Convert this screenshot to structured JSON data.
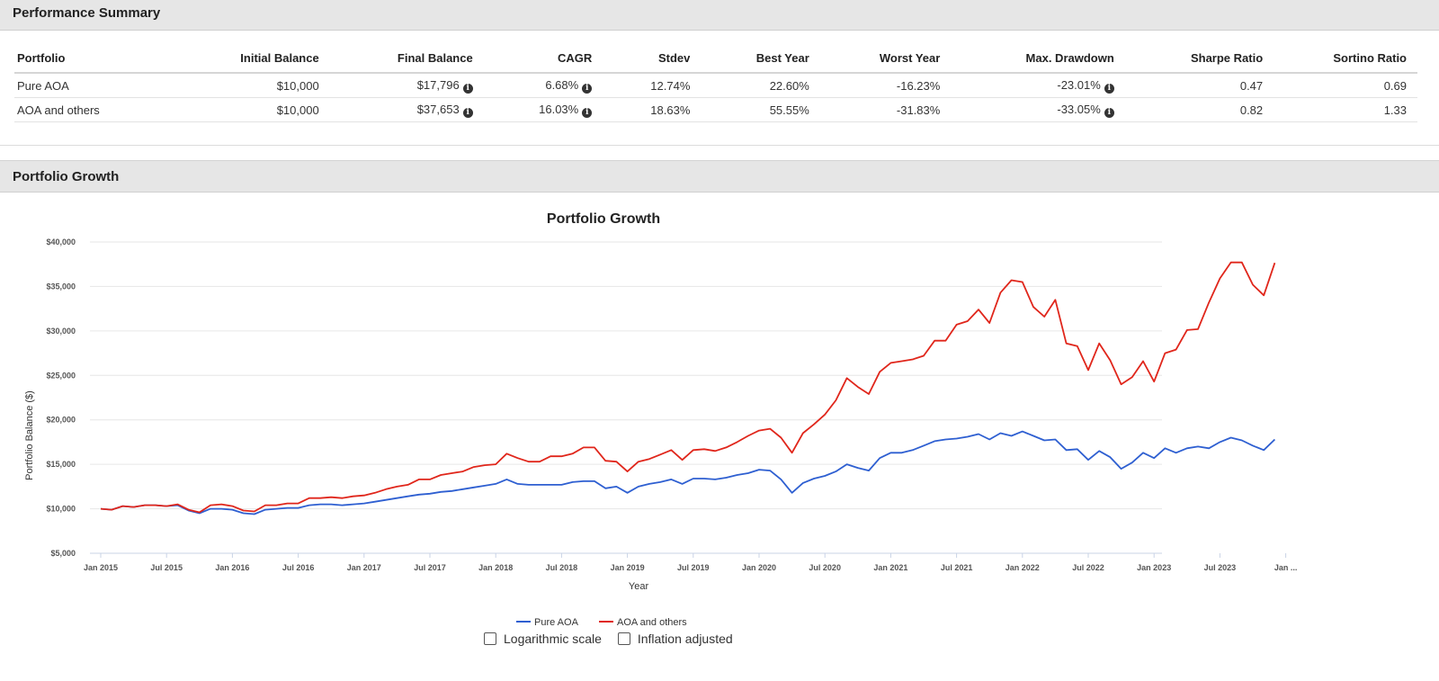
{
  "performance_summary": {
    "title": "Performance Summary",
    "columns": [
      "Portfolio",
      "Initial Balance",
      "Final Balance",
      "CAGR",
      "Stdev",
      "Best Year",
      "Worst Year",
      "Max. Drawdown",
      "Sharpe Ratio",
      "Sortino Ratio"
    ],
    "rows": [
      {
        "portfolio": "Pure AOA",
        "initial_balance": "$10,000",
        "final_balance": "$17,796",
        "cagr": "6.68%",
        "stdev": "12.74%",
        "best_year": "22.60%",
        "worst_year": "-16.23%",
        "max_drawdown": "-23.01%",
        "sharpe_ratio": "0.47",
        "sortino_ratio": "0.69"
      },
      {
        "portfolio": "AOA and others",
        "initial_balance": "$10,000",
        "final_balance": "$37,653",
        "cagr": "16.03%",
        "stdev": "18.63%",
        "best_year": "55.55%",
        "worst_year": "-31.83%",
        "max_drawdown": "-33.05%",
        "sharpe_ratio": "0.82",
        "sortino_ratio": "1.33"
      }
    ],
    "info_icon_glyph": "i"
  },
  "portfolio_growth": {
    "section_title": "Portfolio Growth",
    "controls": {
      "log_scale": {
        "label": "Logarithmic scale",
        "checked": false
      },
      "inflation_adjusted": {
        "label": "Inflation adjusted",
        "checked": false
      }
    }
  },
  "chart_data": {
    "type": "line",
    "title": "Portfolio Growth",
    "xlabel": "Year",
    "ylabel": "Portfolio Balance ($)",
    "ylim": [
      5000,
      40000
    ],
    "yticks": [
      "$5,000",
      "$10,000",
      "$15,000",
      "$20,000",
      "$25,000",
      "$30,000",
      "$35,000",
      "$40,000"
    ],
    "ytick_values": [
      5000,
      10000,
      15000,
      20000,
      25000,
      30000,
      35000,
      40000
    ],
    "xticks": [
      "Jan 2015",
      "Jul 2015",
      "Jan 2016",
      "Jul 2016",
      "Jan 2017",
      "Jul 2017",
      "Jan 2018",
      "Jul 2018",
      "Jan 2019",
      "Jul 2019",
      "Jan 2020",
      "Jul 2020",
      "Jan 2021",
      "Jul 2021",
      "Jan 2022",
      "Jul 2022",
      "Jan 2023",
      "Jul 2023",
      "Jan ..."
    ],
    "grid": true,
    "legend_position": "bottom-center",
    "x_start": "Jan 2015",
    "x_frequency": "monthly",
    "series": [
      {
        "name": "Pure AOA",
        "color": "#2e5fd1",
        "values": [
          10000,
          9900,
          10300,
          10200,
          10400,
          10400,
          10300,
          10400,
          9800,
          9500,
          10000,
          10000,
          9900,
          9500,
          9400,
          9900,
          10000,
          10100,
          10100,
          10400,
          10500,
          10500,
          10400,
          10500,
          10600,
          10800,
          11000,
          11200,
          11400,
          11600,
          11700,
          11900,
          12000,
          12200,
          12400,
          12600,
          12800,
          13300,
          12800,
          12700,
          12700,
          12700,
          12700,
          13000,
          13100,
          13100,
          12300,
          12500,
          11800,
          12500,
          12800,
          13000,
          13300,
          12800,
          13400,
          13400,
          13300,
          13500,
          13800,
          14000,
          14400,
          14300,
          13300,
          11800,
          12900,
          13400,
          13700,
          14200,
          15000,
          14600,
          14300,
          15700,
          16300,
          16300,
          16600,
          17100,
          17600,
          17800,
          17900,
          18100,
          18400,
          17800,
          18500,
          18200,
          18700,
          18200,
          17700,
          17800,
          16600,
          16700,
          15500,
          16500,
          15800,
          14500,
          15200,
          16300,
          15700,
          16800,
          16300,
          16800,
          17000,
          16800,
          17500,
          18000,
          17700,
          17100,
          16600,
          17796
        ]
      },
      {
        "name": "AOA and others",
        "color": "#e0261b",
        "values": [
          10000,
          9900,
          10300,
          10200,
          10400,
          10400,
          10300,
          10500,
          9900,
          9600,
          10400,
          10500,
          10300,
          9800,
          9700,
          10400,
          10400,
          10600,
          10600,
          11200,
          11200,
          11300,
          11200,
          11400,
          11500,
          11800,
          12200,
          12500,
          12700,
          13300,
          13300,
          13800,
          14000,
          14200,
          14700,
          14900,
          15000,
          16200,
          15700,
          15300,
          15300,
          15900,
          15900,
          16200,
          16900,
          16900,
          15400,
          15300,
          14200,
          15300,
          15600,
          16100,
          16600,
          15500,
          16600,
          16700,
          16500,
          16900,
          17500,
          18200,
          18800,
          19000,
          18000,
          16300,
          18500,
          19500,
          20600,
          22200,
          24700,
          23700,
          22900,
          25400,
          26400,
          26600,
          26800,
          27200,
          28900,
          28900,
          30700,
          31100,
          32400,
          30900,
          34300,
          35700,
          35500,
          32700,
          31600,
          33500,
          28600,
          28300,
          25600,
          28600,
          26700,
          24000,
          24800,
          26600,
          24300,
          27500,
          27900,
          30100,
          30200,
          33200,
          35900,
          37700,
          37700,
          35200,
          34000,
          37653
        ]
      }
    ]
  }
}
